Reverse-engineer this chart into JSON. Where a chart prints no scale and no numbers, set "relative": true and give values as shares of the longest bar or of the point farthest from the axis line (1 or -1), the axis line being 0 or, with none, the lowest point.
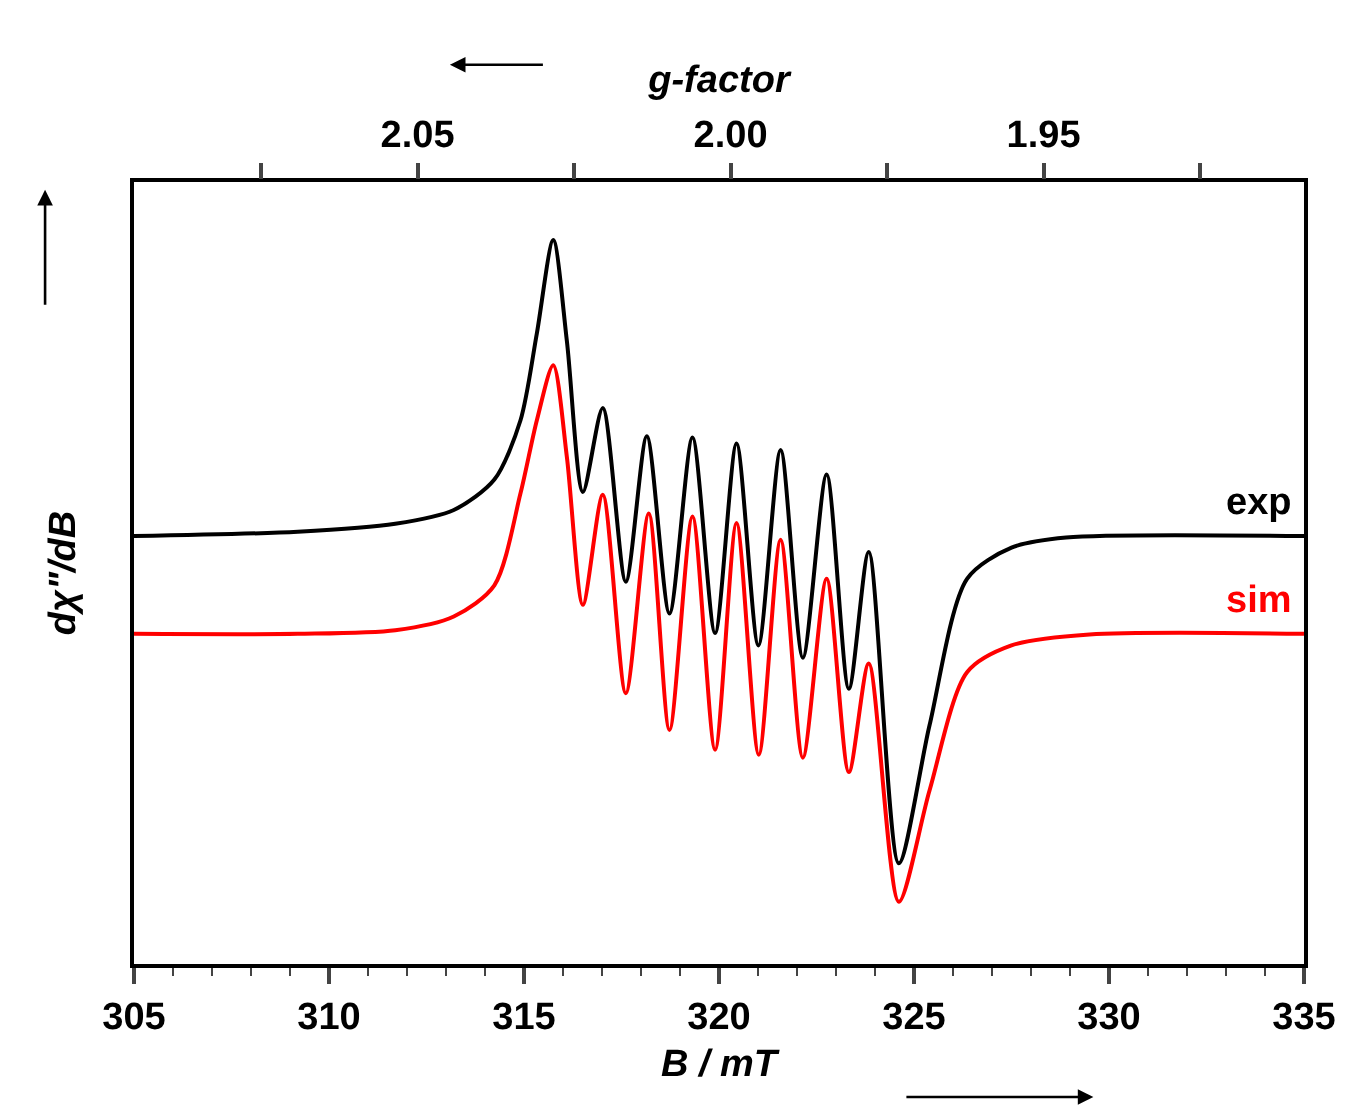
{
  "chart_data": {
    "type": "line",
    "relative": true,
    "xlabel": "B / mT",
    "ylabel": "dχ\"/dB",
    "x2label": "g-factor",
    "xlim": [
      305,
      335
    ],
    "xticks": [
      305,
      {
        "value": 306,
        "label": null
      },
      {
        "value": 307,
        "label": null
      },
      {
        "value": 308,
        "label": null
      },
      {
        "value": 309,
        "label": null
      },
      310,
      {
        "value": 311,
        "label": null
      },
      {
        "value": 312,
        "label": null
      },
      {
        "value": 313,
        "label": null
      },
      {
        "value": 314,
        "label": null
      },
      315,
      {
        "value": 316,
        "label": null
      },
      {
        "value": 317,
        "label": null
      },
      {
        "value": 318,
        "label": null
      },
      {
        "value": 319,
        "label": null
      },
      320,
      {
        "value": 321,
        "label": null
      },
      {
        "value": 322,
        "label": null
      },
      {
        "value": 323,
        "label": null
      },
      {
        "value": 324,
        "label": null
      },
      325,
      {
        "value": 326,
        "label": null
      },
      {
        "value": 327,
        "label": null
      },
      {
        "value": 328,
        "label": null
      },
      {
        "value": 329,
        "label": null
      },
      330,
      {
        "value": 331,
        "label": null
      },
      {
        "value": 332,
        "label": null
      },
      {
        "value": 333,
        "label": null
      },
      {
        "value": 334,
        "label": null
      },
      335
    ],
    "x2lim": [
      2.0953,
      1.9084
    ],
    "x2ticks": [
      {
        "value": 2.05,
        "label": "2.05"
      },
      {
        "value": 2.0,
        "label": "2.00"
      },
      {
        "value": 1.95,
        "label": "1.95"
      }
    ],
    "legend": false,
    "marker": "none",
    "line_style": "solid",
    "series": [
      {
        "name": "exp",
        "color": "#000000",
        "x": [
          305,
          309.2,
          311.7,
          313.2,
          314.24,
          314.91,
          315.33,
          315.75,
          316.1,
          316.51,
          317.02,
          317.61,
          318.15,
          318.73,
          319.32,
          319.9,
          320.45,
          321.01,
          321.58,
          322.15,
          322.76,
          323.33,
          323.84,
          324.61,
          325.4,
          326.36,
          327.5,
          328.9,
          335
        ],
        "values": [
          0.591,
          0.597,
          0.608,
          0.627,
          0.669,
          0.751,
          0.871,
          1.0,
          0.86,
          0.652,
          0.768,
          0.528,
          0.729,
          0.484,
          0.727,
          0.457,
          0.719,
          0.44,
          0.71,
          0.423,
          0.676,
          0.38,
          0.569,
          0.139,
          0.33,
          0.532,
          0.575,
          0.589,
          0.591
        ]
      },
      {
        "name": "sim",
        "color": "#ff0000",
        "x": [
          305,
          309.2,
          311.7,
          313.2,
          314.24,
          314.91,
          315.33,
          315.75,
          316.1,
          316.51,
          317.02,
          317.61,
          318.2,
          318.73,
          319.32,
          319.9,
          320.45,
          321.02,
          321.58,
          322.15,
          322.76,
          323.33,
          323.84,
          324.61,
          325.4,
          326.36,
          327.5,
          329.5,
          335
        ],
        "values": [
          0.456,
          0.456,
          0.461,
          0.48,
          0.523,
          0.65,
          0.751,
          0.827,
          0.7,
          0.496,
          0.648,
          0.374,
          0.622,
          0.323,
          0.618,
          0.296,
          0.609,
          0.289,
          0.586,
          0.285,
          0.532,
          0.265,
          0.415,
          0.086,
          0.24,
          0.403,
          0.44,
          0.455,
          0.456
        ]
      }
    ]
  }
}
